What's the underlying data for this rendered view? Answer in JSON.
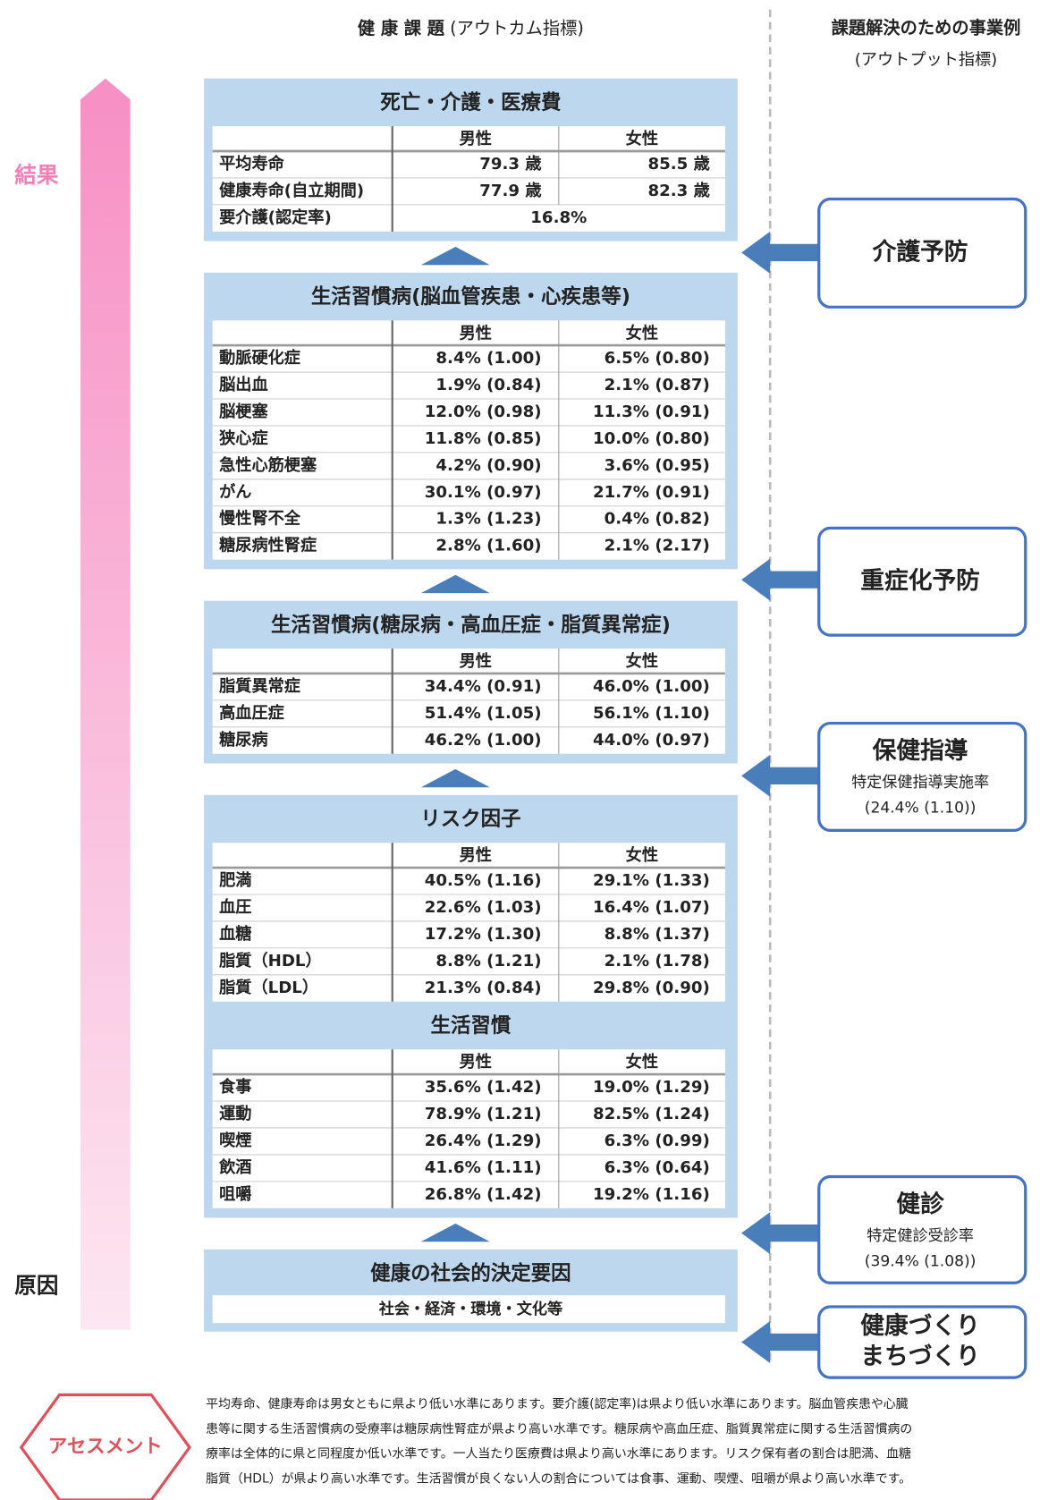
{
  "header": {
    "left_title": "健 康 課 題",
    "left_sub": "(アウトカム指標)",
    "right_title": "課題解決のための事業例",
    "right_sub": "(アウトプット指標)"
  },
  "axis": {
    "top": "結果",
    "bottom": "原因"
  },
  "panels": [
    {
      "tables": [
        {
          "title": "死亡・介護・医療費",
          "columns": [
            "男性",
            "女性"
          ],
          "rows": [
            {
              "label": "平均寿命",
              "values": [
                "79.3 歳",
                "85.5 歳"
              ]
            },
            {
              "label": "健康寿命(自立期間)",
              "values": [
                "77.9 歳",
                "82.3 歳"
              ]
            },
            {
              "label": "要介護(認定率)",
              "values": [
                "16.8%"
              ]
            }
          ]
        }
      ]
    },
    {
      "tables": [
        {
          "title": "生活習慣病(脳血管疾患・心疾患等)",
          "columns": [
            "男性",
            "女性"
          ],
          "rows": [
            {
              "label": "動脈硬化症",
              "values": [
                "8.4% (1.00)",
                "6.5% (0.80)"
              ]
            },
            {
              "label": "脳出血",
              "values": [
                "1.9% (0.84)",
                "2.1% (0.87)"
              ]
            },
            {
              "label": "脳梗塞",
              "values": [
                "12.0% (0.98)",
                "11.3% (0.91)"
              ]
            },
            {
              "label": "狭心症",
              "values": [
                "11.8% (0.85)",
                "10.0% (0.80)"
              ]
            },
            {
              "label": "急性心筋梗塞",
              "values": [
                "4.2% (0.90)",
                "3.6% (0.95)"
              ]
            },
            {
              "label": "がん",
              "values": [
                "30.1% (0.97)",
                "21.7% (0.91)"
              ]
            },
            {
              "label": "慢性腎不全",
              "values": [
                "1.3% (1.23)",
                "0.4% (0.82)"
              ]
            },
            {
              "label": "糖尿病性腎症",
              "values": [
                "2.8% (1.60)",
                "2.1% (2.17)"
              ]
            }
          ]
        }
      ]
    },
    {
      "tables": [
        {
          "title": "生活習慣病(糖尿病・高血圧症・脂質異常症)",
          "columns": [
            "男性",
            "女性"
          ],
          "rows": [
            {
              "label": "脂質異常症",
              "values": [
                "34.4% (0.91)",
                "46.0% (1.00)"
              ]
            },
            {
              "label": "高血圧症",
              "values": [
                "51.4% (1.05)",
                "56.1% (1.10)"
              ]
            },
            {
              "label": "糖尿病",
              "values": [
                "46.2% (1.00)",
                "44.0% (0.97)"
              ]
            }
          ]
        }
      ]
    },
    {
      "tables": [
        {
          "title": "リスク因子",
          "columns": [
            "男性",
            "女性"
          ],
          "rows": [
            {
              "label": "肥満",
              "values": [
                "40.5% (1.16)",
                "29.1% (1.33)"
              ]
            },
            {
              "label": "血圧",
              "values": [
                "22.6% (1.03)",
                "16.4% (1.07)"
              ]
            },
            {
              "label": "血糖",
              "values": [
                "17.2% (1.30)",
                "8.8% (1.37)"
              ]
            },
            {
              "label": "脂質（HDL）",
              "values": [
                "8.8% (1.21)",
                "2.1% (1.78)"
              ]
            },
            {
              "label": "脂質（LDL）",
              "values": [
                "21.3% (0.84)",
                "29.8% (0.90)"
              ]
            }
          ]
        },
        {
          "title": "生活習慣",
          "columns": [
            "男性",
            "女性"
          ],
          "rows": [
            {
              "label": "食事",
              "values": [
                "35.6% (1.42)",
                "19.0% (1.29)"
              ]
            },
            {
              "label": "運動",
              "values": [
                "78.9% (1.21)",
                "82.5% (1.24)"
              ]
            },
            {
              "label": "喫煙",
              "values": [
                "26.4% (1.29)",
                "6.3% (0.99)"
              ]
            },
            {
              "label": "飲酒",
              "values": [
                "41.6% (1.11)",
                "6.3% (0.64)"
              ]
            },
            {
              "label": "咀嚼",
              "values": [
                "26.8% (1.42)",
                "19.2% (1.16)"
              ]
            }
          ]
        }
      ]
    },
    {
      "title": "健康の社会的決定要因",
      "note": "社会・経済・環境・文化等"
    }
  ],
  "programs": [
    {
      "title": [
        "介護予防"
      ],
      "details": []
    },
    {
      "title": [
        "重症化予防"
      ],
      "details": []
    },
    {
      "title": [
        "保健指導"
      ],
      "details": [
        "特定保健指導実施率",
        "(24.4% (1.10))"
      ]
    },
    {
      "title": [
        "健診"
      ],
      "details": [
        "特定健診受診率",
        "(39.4% (1.08))"
      ]
    },
    {
      "title": [
        "健康づくり",
        "まちづくり"
      ],
      "details": []
    }
  ],
  "assessment": {
    "label": "アセスメント",
    "lines": [
      "平均寿命、健康寿命は男女ともに県より低い水準にあります。要介護(認定率)は県より低い水準にあります。脳血管疾患や心臓",
      "患等に関する生活習慣病の受療率は糖尿病性腎症が県より高い水準です。糖尿病や高血圧症、脂質異常症に関する生活習慣病の",
      "療率は全体的に県と同程度か低い水準です。一人当たり医療費は県より高い水準にあります。リスク保有者の割合は肥満、血糖",
      "脂質（HDL）が県より高い水準です。生活習慣が良くない人の割合については食事、運動、喫煙、咀嚼が県より高い水準です。"
    ]
  }
}
